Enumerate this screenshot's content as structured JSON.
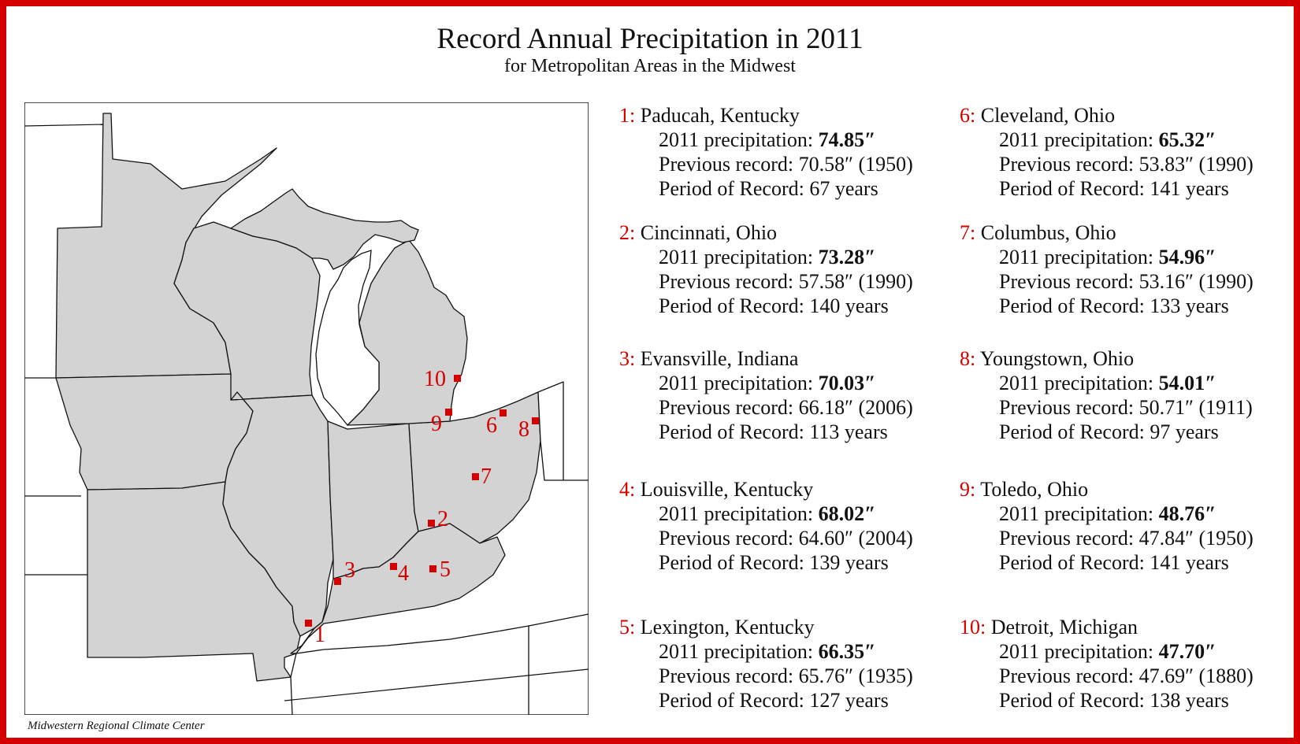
{
  "title": "Record Annual Precipitation in 2011",
  "subtitle": "for Metropolitan Areas in the Midwest",
  "credit": "Midwestern Regional Climate Center",
  "colors": {
    "accent": "#d40000",
    "land": "#d3d3d3",
    "water": "#ffffff"
  },
  "labels": {
    "precip": "2011 precipitation: ",
    "previous": "Previous record: ",
    "period": "Period of Record: "
  },
  "cities": [
    {
      "num": "1:",
      "name": "Paducah, Kentucky",
      "precip": "74.85″",
      "previous": "70.58″ (1950)",
      "period": "67 years",
      "marker": "1"
    },
    {
      "num": "2:",
      "name": "Cincinnati, Ohio",
      "precip": "73.28″",
      "previous": "57.58″ (1990)",
      "period": "140 years",
      "marker": "2"
    },
    {
      "num": "3:",
      "name": "Evansville, Indiana",
      "precip": "70.03″",
      "previous": "66.18″ (2006)",
      "period": "113 years",
      "marker": "3"
    },
    {
      "num": "4:",
      "name": "Louisville, Kentucky",
      "precip": "68.02″",
      "previous": "64.60″ (2004)",
      "period": "139 years",
      "marker": "4"
    },
    {
      "num": "5:",
      "name": "Lexington, Kentucky",
      "precip": "66.35″",
      "previous": "65.76″ (1935)",
      "period": "127 years",
      "marker": "5"
    },
    {
      "num": "6:",
      "name": "Cleveland, Ohio",
      "precip": "65.32″",
      "previous": "53.83″ (1990)",
      "period": "141 years",
      "marker": "6"
    },
    {
      "num": "7:",
      "name": "Columbus, Ohio",
      "precip": "54.96″",
      "previous": "53.16″ (1990)",
      "period": "133 years",
      "marker": "7"
    },
    {
      "num": "8:",
      "name": "Youngstown, Ohio",
      "precip": "54.01″",
      "previous": "50.71″ (1911)",
      "period": "97 years",
      "marker": "8"
    },
    {
      "num": "9:",
      "name": "Toledo, Ohio",
      "precip": "48.76″",
      "previous": "47.84″ (1950)",
      "period": "141 years",
      "marker": "9"
    },
    {
      "num": "10:",
      "name": "Detroit, Michigan",
      "precip": "47.70″",
      "previous": "47.69″ (1880)",
      "period": "138 years",
      "marker": "10"
    }
  ]
}
